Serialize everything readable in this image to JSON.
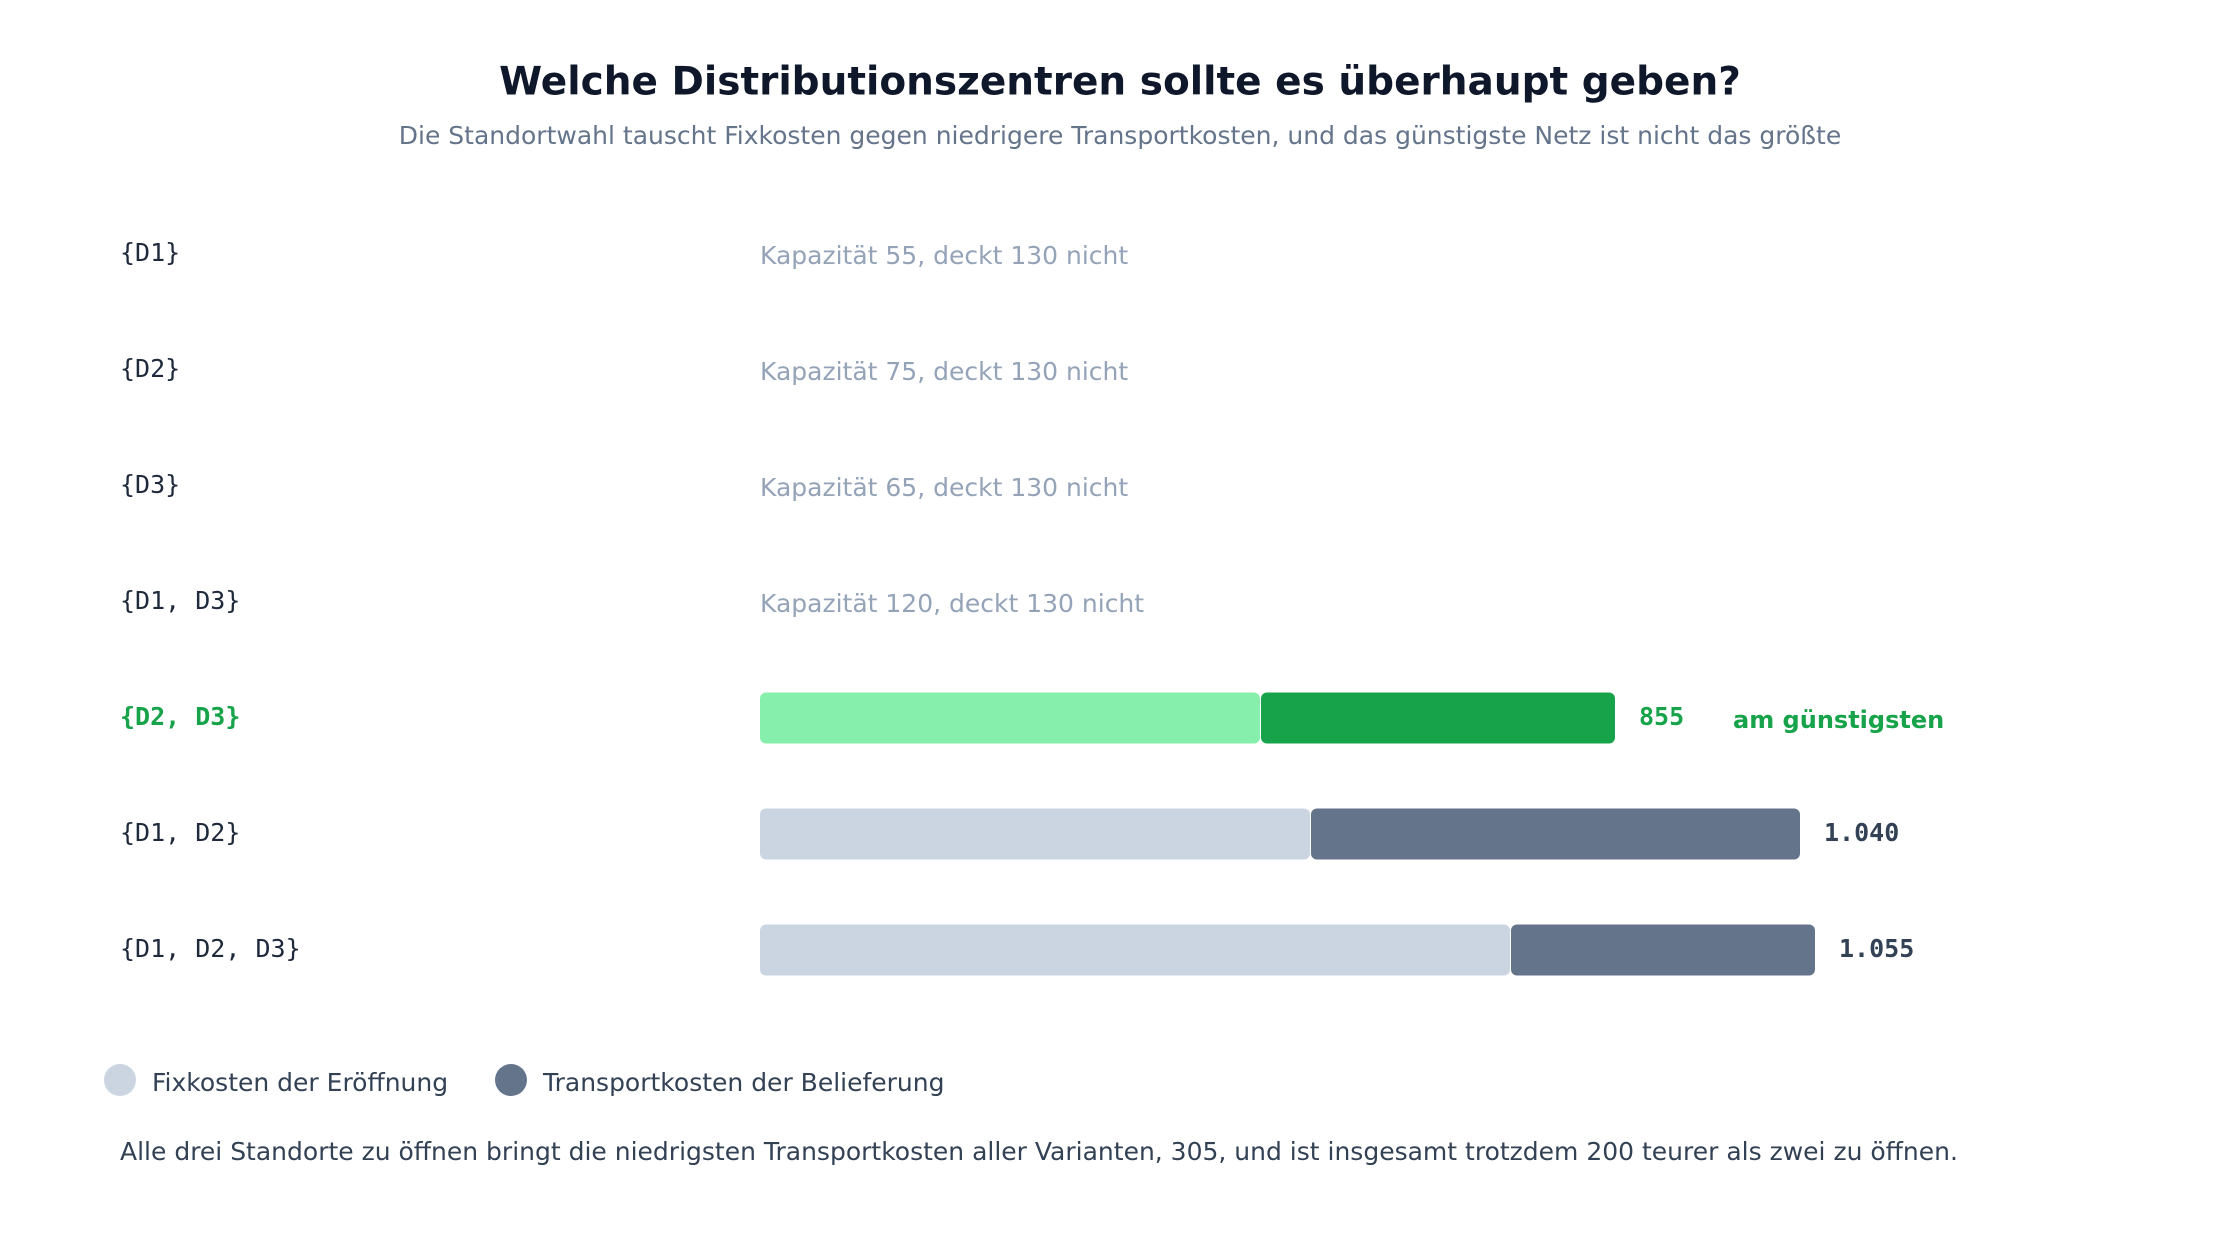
{
  "chart_data": {
    "type": "stacked-bar-horizontal",
    "title": "Welche Distributionszentren sollte es überhaupt geben?",
    "subtitle": "Die Standortwahl tauscht Fixkosten gegen niedrigere Transportkosten, und das günstigste Netz ist nicht das größte",
    "categories": [
      "{D1}",
      "{D2}",
      "{D3}",
      "{D1, D3}",
      "{D2, D3}",
      "{D1, D2}",
      "{D1, D2, D3}"
    ],
    "notes": [
      "Kapazität 55, deckt 130 nicht",
      "Kapazität 75, deckt 130 nicht",
      "Kapazität 65, deckt 130 nicht",
      "Kapazität 120, deckt 130 nicht",
      null,
      null,
      null
    ],
    "series": [
      {
        "name": "Fixkosten der Eröffnung",
        "color": "#cbd5e1",
        "highlight_color": "#86efac",
        "values": [
          null,
          null,
          null,
          null,
          500,
          550,
          750
        ]
      },
      {
        "name": "Transportkosten der Belieferung",
        "color": "#64748b",
        "highlight_color": "#16a34a",
        "values": [
          null,
          null,
          null,
          null,
          355,
          490,
          305
        ]
      }
    ],
    "totals": {
      "values": [
        null,
        null,
        null,
        null,
        855,
        1040,
        1055
      ],
      "value_labels": [
        null,
        null,
        null,
        null,
        "855",
        "1.040",
        "1.055"
      ]
    },
    "highlight": 4,
    "highlight_label": "am günstigsten",
    "highlight_text_color": "#16a34a",
    "footnote": "Alle drei Standorte zu öffnen bringt die niedrigsten Transportkosten aller Varianten, 305, und ist insgesamt trotzdem 200 teurer als zwei zu öffnen."
  }
}
